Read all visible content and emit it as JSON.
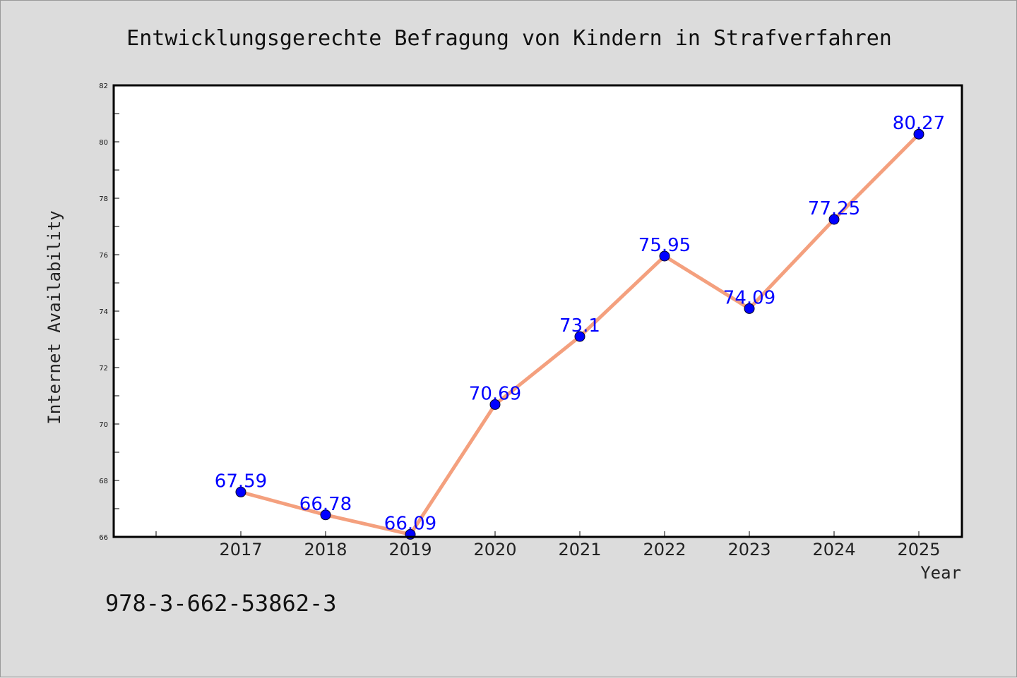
{
  "chart_data": {
    "type": "line",
    "title": "Entwicklungsgerechte Befragung von Kindern in Strafverfahren",
    "xlabel": "Year",
    "ylabel": "Internet Availability",
    "categories": [
      "2017",
      "2018",
      "2019",
      "2020",
      "2021",
      "2022",
      "2023",
      "2024",
      "2025"
    ],
    "series": [
      {
        "values": [
          67.59,
          66.78,
          66.09,
          70.69,
          73.1,
          75.95,
          74.09,
          77.25,
          80.27
        ],
        "labels": [
          "67.59",
          "66.78",
          "66.09",
          "70.69",
          "73.1",
          "75.95",
          "74.09",
          "77.25",
          "80.27"
        ]
      }
    ],
    "ylim": [
      66,
      82
    ],
    "yticks": [
      "66",
      "68",
      "70",
      "72",
      "74",
      "76",
      "78",
      "80",
      "82"
    ],
    "grid": false,
    "legend": "none",
    "line_color": "#f4a07e",
    "marker_color": "#0000ff",
    "label_color": "#0000ff"
  },
  "footer": {
    "isbn": "978-3-662-53862-3"
  }
}
